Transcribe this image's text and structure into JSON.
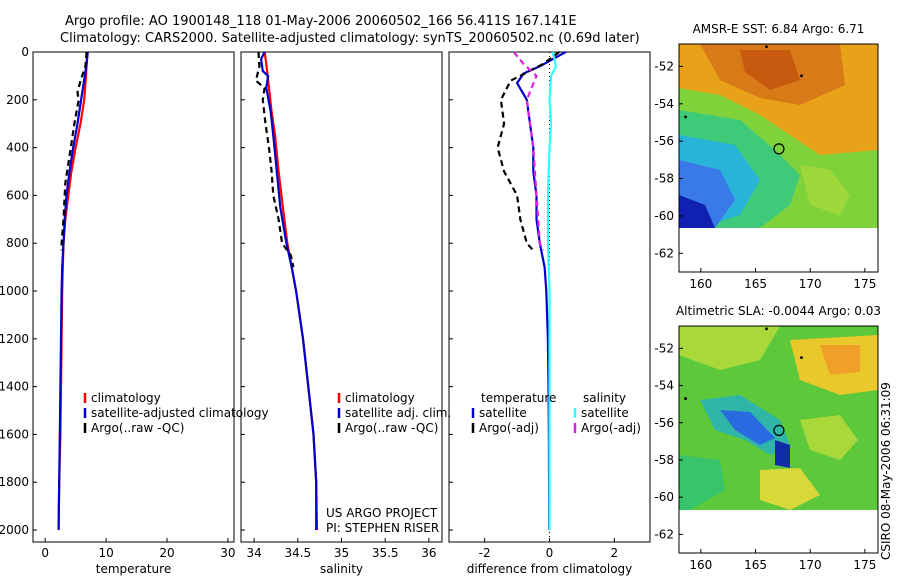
{
  "header": {
    "line1": "Argo profile: AO 1900148_118 01-May-2006 20060502_166 56.411S 167.141E",
    "line2": "Climatology: CARS2000. Satellite-adjusted climatology: synTS_20060502.nc (0.69d later)"
  },
  "credit": "CSIRO 08-May-2006 06:31:09",
  "colors": {
    "clim": "#ff0000",
    "sat": "#0000cc",
    "argo": "#000000",
    "sal_sat": "#33ffff",
    "sal_argo": "#dd22dd"
  },
  "chart_data": [
    {
      "id": "temperature",
      "type": "line",
      "xlabel": "temperature",
      "xlim": [
        -2,
        31
      ],
      "ylim": [
        2050,
        0
      ],
      "xticks": [
        "0",
        "10",
        "20",
        "30"
      ],
      "yticks": [
        "0",
        "200",
        "400",
        "600",
        "800",
        "1000",
        "1200",
        "1400",
        "1600",
        "1800",
        "2000"
      ],
      "legend": [
        "climatology",
        "satellite-adjusted climatology",
        "Argo(..raw -QC)"
      ],
      "series": [
        {
          "name": "climatology",
          "color": "clim",
          "points": [
            [
              6.9,
              0
            ],
            [
              6.8,
              50
            ],
            [
              6.7,
              100
            ],
            [
              6.4,
              200
            ],
            [
              5.8,
              300
            ],
            [
              5.0,
              400
            ],
            [
              4.3,
              500
            ],
            [
              3.8,
              600
            ],
            [
              3.3,
              700
            ],
            [
              3.0,
              800
            ],
            [
              2.9,
              900
            ],
            [
              2.8,
              1000
            ],
            [
              2.7,
              1200
            ],
            [
              2.6,
              1400
            ],
            [
              2.5,
              1600
            ],
            [
              2.3,
              1800
            ],
            [
              2.2,
              2000
            ]
          ]
        },
        {
          "name": "satellite-adjusted climatology",
          "color": "sat",
          "points": [
            [
              7.0,
              0
            ],
            [
              6.8,
              50
            ],
            [
              6.5,
              100
            ],
            [
              5.9,
              200
            ],
            [
              5.3,
              300
            ],
            [
              4.6,
              400
            ],
            [
              4.0,
              500
            ],
            [
              3.5,
              600
            ],
            [
              3.2,
              700
            ],
            [
              3.0,
              800
            ],
            [
              2.8,
              900
            ],
            [
              2.7,
              1000
            ],
            [
              2.6,
              1200
            ],
            [
              2.5,
              1400
            ],
            [
              2.4,
              1600
            ],
            [
              2.3,
              1800
            ],
            [
              2.2,
              2000
            ]
          ]
        },
        {
          "name": "Argo(..raw -QC)",
          "color": "argo",
          "dashed": true,
          "points": [
            [
              6.8,
              0
            ],
            [
              6.6,
              60
            ],
            [
              5.8,
              120
            ],
            [
              5.3,
              170
            ],
            [
              5.5,
              200
            ],
            [
              4.8,
              300
            ],
            [
              4.2,
              400
            ],
            [
              3.6,
              500
            ],
            [
              3.3,
              550
            ],
            [
              3.2,
              600
            ],
            [
              3.0,
              700
            ],
            [
              2.7,
              800
            ],
            [
              2.7,
              830
            ]
          ]
        }
      ]
    },
    {
      "id": "salinity",
      "type": "line",
      "xlabel": "salinity",
      "xlim": [
        33.85,
        36.15
      ],
      "ylim": [
        2050,
        0
      ],
      "xticks": [
        "34",
        "34.5",
        "35",
        "35.5",
        "36"
      ],
      "legend": [
        "climatology",
        "satellite adj. clim.",
        "Argo(..raw -QC)"
      ],
      "notes": [
        "US ARGO PROJECT",
        "PI: STEPHEN RISER"
      ],
      "series": [
        {
          "name": "climatology",
          "color": "clim",
          "points": [
            [
              34.12,
              0
            ],
            [
              34.14,
              50
            ],
            [
              34.17,
              150
            ],
            [
              34.2,
              250
            ],
            [
              34.24,
              350
            ],
            [
              34.28,
              500
            ],
            [
              34.33,
              650
            ],
            [
              34.38,
              800
            ],
            [
              34.43,
              900
            ],
            [
              34.48,
              1000
            ],
            [
              34.56,
              1200
            ],
            [
              34.62,
              1400
            ],
            [
              34.68,
              1600
            ],
            [
              34.71,
              1800
            ],
            [
              34.72,
              2000
            ]
          ]
        },
        {
          "name": "satellite adj. clim.",
          "color": "sat",
          "points": [
            [
              34.12,
              0
            ],
            [
              34.08,
              30
            ],
            [
              34.1,
              80
            ],
            [
              34.16,
              100
            ],
            [
              34.14,
              150
            ],
            [
              34.19,
              250
            ],
            [
              34.22,
              350
            ],
            [
              34.26,
              500
            ],
            [
              34.3,
              650
            ],
            [
              34.37,
              800
            ],
            [
              34.43,
              900
            ],
            [
              34.48,
              1000
            ],
            [
              34.56,
              1200
            ],
            [
              34.62,
              1400
            ],
            [
              34.68,
              1600
            ],
            [
              34.71,
              1800
            ],
            [
              34.71,
              2000
            ]
          ]
        },
        {
          "name": "Argo(..raw -QC)",
          "color": "argo",
          "dashed": true,
          "points": [
            [
              34.05,
              0
            ],
            [
              34.06,
              60
            ],
            [
              34.02,
              120
            ],
            [
              34.12,
              150
            ],
            [
              34.1,
              200
            ],
            [
              34.13,
              300
            ],
            [
              34.17,
              400
            ],
            [
              34.2,
              500
            ],
            [
              34.22,
              600
            ],
            [
              34.28,
              700
            ],
            [
              34.32,
              800
            ],
            [
              34.42,
              850
            ],
            [
              34.45,
              900
            ]
          ]
        }
      ]
    },
    {
      "id": "difference",
      "type": "line",
      "xlabel": "difference from climatology",
      "xlim": [
        -3.1,
        3.1
      ],
      "ylim": [
        2050,
        0
      ],
      "xticks": [
        "-2",
        "0",
        "2"
      ],
      "legend_left": [
        "temperature",
        "satellite",
        "Argo(-adj)"
      ],
      "legend_right": [
        "salinity",
        "satellite",
        "Argo(-adj)"
      ],
      "series": [
        {
          "name": "temperature satellite",
          "color": "sat",
          "points": [
            [
              0.5,
              0
            ],
            [
              0.1,
              30
            ],
            [
              -0.3,
              60
            ],
            [
              -0.8,
              90
            ],
            [
              -1.0,
              130
            ],
            [
              -0.7,
              200
            ],
            [
              -0.6,
              300
            ],
            [
              -0.5,
              400
            ],
            [
              -0.5,
              500
            ],
            [
              -0.4,
              600
            ],
            [
              -0.4,
              700
            ],
            [
              -0.3,
              800
            ],
            [
              -0.15,
              900
            ],
            [
              -0.1,
              1000
            ],
            [
              -0.05,
              1200
            ],
            [
              -0.03,
              1400
            ],
            [
              -0.02,
              1600
            ],
            [
              -0.01,
              2000
            ]
          ]
        },
        {
          "name": "temperature Argo(-adj)",
          "color": "argo",
          "dashed": true,
          "points": [
            [
              0.3,
              0
            ],
            [
              -0.2,
              50
            ],
            [
              -1.2,
              120
            ],
            [
              -1.5,
              200
            ],
            [
              -1.4,
              300
            ],
            [
              -1.6,
              400
            ],
            [
              -1.4,
              500
            ],
            [
              -1.0,
              600
            ],
            [
              -0.9,
              700
            ],
            [
              -0.7,
              800
            ],
            [
              -0.5,
              830
            ]
          ]
        },
        {
          "name": "salinity satellite",
          "color": "sal_sat",
          "points": [
            [
              0.1,
              0
            ],
            [
              0.15,
              30
            ],
            [
              0.2,
              60
            ],
            [
              0.05,
              100
            ],
            [
              0.0,
              200
            ],
            [
              0.05,
              300
            ],
            [
              0.0,
              400
            ],
            [
              -0.05,
              600
            ],
            [
              -0.05,
              800
            ],
            [
              0.0,
              1000
            ],
            [
              0.0,
              1200
            ],
            [
              0.0,
              2000
            ]
          ]
        },
        {
          "name": "salinity Argo(-adj)",
          "color": "sal_argo",
          "dashed": true,
          "points": [
            [
              -1.1,
              0
            ],
            [
              -0.8,
              50
            ],
            [
              -0.4,
              100
            ],
            [
              -0.7,
              200
            ],
            [
              -0.5,
              400
            ],
            [
              -0.4,
              600
            ],
            [
              -0.3,
              800
            ],
            [
              -0.2,
              830
            ]
          ]
        }
      ]
    },
    {
      "id": "sst_map",
      "type": "heatmap",
      "title": "AMSR-E SST: 6.84  Argo: 6.71",
      "xlim": [
        158,
        176.2
      ],
      "ylim": [
        -63,
        -50.8
      ],
      "xticks": [
        "160",
        "165",
        "170",
        "175"
      ],
      "yticks": [
        "-52",
        "-54",
        "-56",
        "-58",
        "-60",
        "-62"
      ],
      "marker": [
        167.141,
        -56.411
      ]
    },
    {
      "id": "sla_map",
      "type": "heatmap",
      "title": "Altimetric SLA: -0.0044  Argo: 0.03",
      "xlim": [
        158,
        176.2
      ],
      "ylim": [
        -63,
        -50.8
      ],
      "xticks": [
        "160",
        "165",
        "170",
        "175"
      ],
      "yticks": [
        "-52",
        "-54",
        "-56",
        "-58",
        "-60",
        "-62"
      ],
      "marker": [
        167.141,
        -56.411
      ]
    }
  ]
}
